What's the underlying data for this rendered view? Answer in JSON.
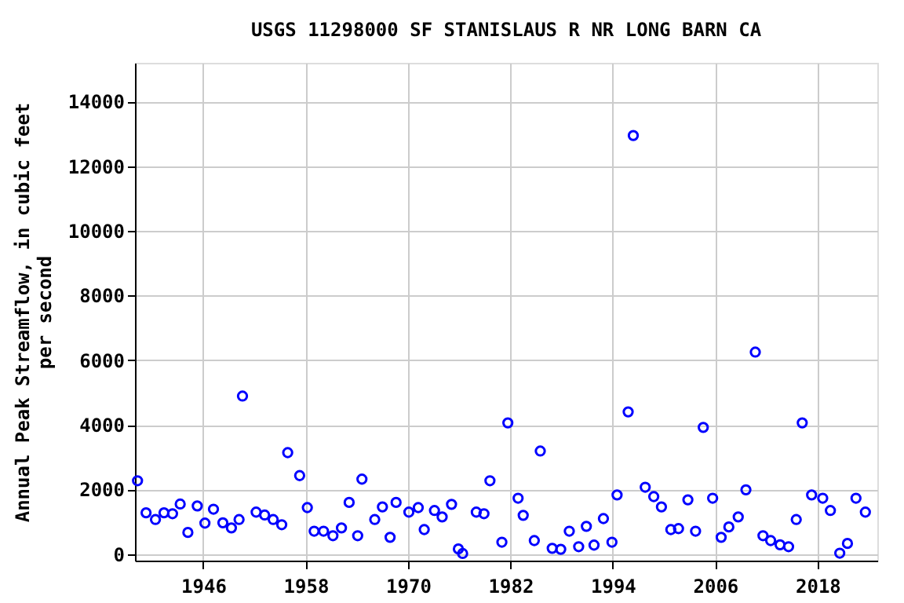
{
  "chart_data": {
    "type": "scatter",
    "title": "USGS 11298000 SF STANISLAUS R NR LONG BARN CA",
    "ylabel": "Annual Peak Streamflow, in cubic feet\nper second",
    "x": [
      1938.3,
      1939.3,
      1940.4,
      1941.4,
      1942.4,
      1943.3,
      1944.2,
      1945.3,
      1946.2,
      1947.2,
      1948.3,
      1949.3,
      1950.2,
      1950.6,
      1952.2,
      1953.2,
      1954.2,
      1955.2,
      1955.9,
      1957.3,
      1958.2,
      1959.0,
      1960.1,
      1961.2,
      1962.2,
      1963.1,
      1964.1,
      1964.6,
      1966.1,
      1967.0,
      1967.9,
      1968.6,
      1970.1,
      1971.2,
      1971.9,
      1973.1,
      1974.0,
      1975.1,
      1975.9,
      1976.4,
      1978.0,
      1978.9,
      1979.6,
      1981.0,
      1981.7,
      1982.9,
      1983.5,
      1984.8,
      1985.5,
      1986.9,
      1987.9,
      1988.9,
      1990.0,
      1990.9,
      1991.8,
      1992.9,
      1993.9,
      1994.5,
      1995.8,
      1996.4,
      1997.8,
      1998.8,
      1999.7,
      2000.8,
      2001.7,
      2002.8,
      2003.7,
      2004.6,
      2005.7,
      2006.7,
      2007.6,
      2008.7,
      2009.6,
      2010.7,
      2011.6,
      2012.5,
      2013.6,
      2014.6,
      2015.5,
      2016.2,
      2017.3,
      2018.6,
      2019.5,
      2020.6,
      2021.5,
      2022.5,
      2023.6
    ],
    "series": [
      {
        "color": "#0000ff",
        "values": [
          2270,
          1280,
          1070,
          1280,
          1250,
          1550,
          670,
          1490,
          960,
          1390,
          970,
          810,
          1070,
          4890,
          1300,
          1210,
          1070,
          910,
          3140,
          2430,
          1440,
          710,
          710,
          570,
          810,
          1600,
          570,
          2320,
          1070,
          1460,
          520,
          1600,
          1300,
          1440,
          760,
          1350,
          1150,
          1540,
          160,
          20,
          1300,
          1250,
          2270,
          370,
          4060,
          1730,
          1200,
          420,
          3190,
          180,
          150,
          710,
          230,
          860,
          280,
          1100,
          370,
          1830,
          4400,
          12950,
          2070,
          1780,
          1460,
          760,
          790,
          1680,
          710,
          3920,
          1730,
          520,
          840,
          1150,
          1990,
          6250,
          570,
          420,
          290,
          230,
          1070,
          4060,
          1830,
          1730,
          1350,
          30,
          330,
          1730,
          1300
        ]
      }
    ],
    "xlim": [
      1938,
      2025
    ],
    "ylim": [
      -200,
      15200
    ],
    "xticks": [
      1946,
      1958,
      1970,
      1982,
      1994,
      2006,
      2018
    ],
    "yticks": [
      0,
      2000,
      4000,
      6000,
      8000,
      10000,
      12000,
      14000
    ],
    "grid": true,
    "marker": "circle"
  }
}
